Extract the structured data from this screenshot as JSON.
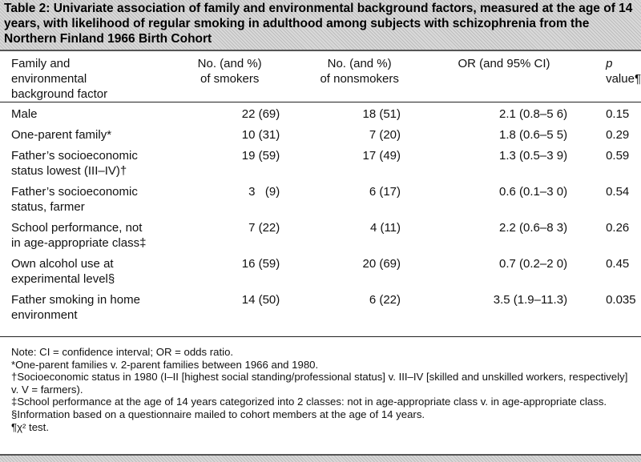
{
  "title": "Table 2: Univariate association of family and environmental background factors, measured at the age of 14 years, with likelihood of regular smoking in adulthood among subjects with schizophrenia from the Northern Finland 1966 Birth Cohort",
  "headers": {
    "factor_line1": "Family and",
    "factor_line2": "environmental",
    "factor_line3": "background factor",
    "smokers_line1": "No. (and %)",
    "smokers_line2": "of smokers",
    "nonsmokers_line1": "No. (and %)",
    "nonsmokers_line2": "of nonsmokers",
    "or": "OR (and 95% CI)",
    "p_italic": "p",
    "p_rest": " value¶"
  },
  "rows": [
    {
      "line1": "Male",
      "line2": "",
      "smokers": "22 (69)",
      "nonsmokers": "18 (51)",
      "or": "2.1 (0.8–5 6)",
      "p": "0.15"
    },
    {
      "line1": "One-parent family*",
      "line2": "",
      "smokers": "10 (31)",
      "nonsmokers": "7 (20)",
      "or": "1.8 (0.6–5 5)",
      "p": "0.29"
    },
    {
      "line1": "Father’s socioeconomic",
      "line2": "status lowest (III–IV)†",
      "smokers": "19 (59)",
      "nonsmokers": "17 (49)",
      "or": "1.3 (0.5–3 9)",
      "p": "0.59"
    },
    {
      "line1": "Father’s socioeconomic",
      "line2": "status, farmer",
      "smokers": "3   (9)",
      "nonsmokers": "6 (17)",
      "or": "0.6 (0.1–3 0)",
      "p": "0.54"
    },
    {
      "line1": "School performance, not",
      "line2": "in age-appropriate class‡",
      "smokers": "7 (22)",
      "nonsmokers": "4 (11)",
      "or": "2.2 (0.6–8 3)",
      "p": "0.26"
    },
    {
      "line1": "Own alcohol use at",
      "line2": "experimental level§",
      "smokers": "16 (59)",
      "nonsmokers": "20 (69)",
      "or": "0.7 (0.2–2 0)",
      "p": "0.45"
    },
    {
      "line1": "Father smoking in home",
      "line2": "environment",
      "smokers": "14 (50)",
      "nonsmokers": "6 (22)",
      "or": "3.5 (1.9–11.3)",
      "p": "0.035"
    }
  ],
  "notes": [
    "Note: CI = confidence interval; OR = odds ratio.",
    "*One-parent families v. 2-parent families between 1966 and 1980.",
    "†Socioeconomic status in 1980 (I–II [highest social standing/professional status] v. III–IV [skilled and unskilled workers, respectively] v. V = farmers).",
    "‡School performance at the age of 14 years categorized into 2 classes: not in age-appropriate class v. in age-appropriate class.",
    "§Information based on a questionnaire mailed to cohort members at the age of 14 years.",
    "¶χ² test."
  ]
}
